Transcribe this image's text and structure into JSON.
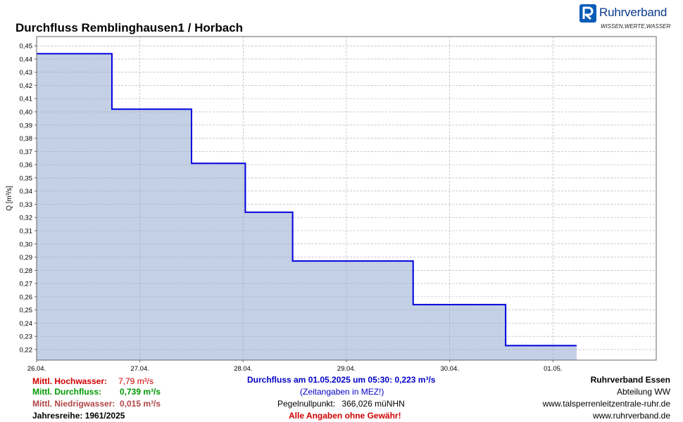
{
  "title": "Durchfluss Remblinghausen1 / Horbach",
  "logo": {
    "name": "Ruhrverband",
    "tagline": "WISSEN,WERTE,WASSER"
  },
  "colors": {
    "line": "#0000dd",
    "fill": "#c4d0e5",
    "plot_bg": "#ffffff",
    "grid": "#a8a8b8"
  },
  "chart_data": {
    "type": "area",
    "ylabel": "Q [m³/s]",
    "xlabel": "",
    "ylim": [
      0.212,
      0.457
    ],
    "xlim": [
      "26.04. 00:00",
      "02.05. 00:00"
    ],
    "yticks": [
      "0,22",
      "0,23",
      "0,24",
      "0,25",
      "0,26",
      "0,27",
      "0,28",
      "0,29",
      "0,30",
      "0,31",
      "0,32",
      "0,33",
      "0,34",
      "0,35",
      "0,36",
      "0,37",
      "0,38",
      "0,39",
      "0,40",
      "0,41",
      "0,42",
      "0,43",
      "0,44",
      "0,45"
    ],
    "xticks": [
      "26.04.",
      "27.04.",
      "28.04.",
      "29.04.",
      "30.04.",
      "01.05."
    ],
    "grid": true,
    "series": [
      {
        "step": "post",
        "x": [
          "26.04. 00:00",
          "26.04. 17:30",
          "27.04. 12:00",
          "28.04. 00:30",
          "28.04. 11:30",
          "29.04. 15:30",
          "30.04. 13:00",
          "01.05. 05:30"
        ],
        "y": [
          0.444,
          0.402,
          0.361,
          0.324,
          0.287,
          0.254,
          0.223,
          0.223
        ]
      }
    ]
  },
  "footer": {
    "hochwasser": {
      "label": "Mittl. Hochwasser:",
      "value": "7,79 m³/s"
    },
    "durchfluss": {
      "label": "Mittl. Durchfluss:",
      "value": "0,739 m³/s"
    },
    "niedrigwasser": {
      "label": "Mittl. Niedrigwasser:",
      "value": "0,015 m³/s"
    },
    "jahresreihe": "Jahresreihe: 1961/2025",
    "current": "Durchfluss am 01.05.2025 um 05:30: 0,223 m³/s",
    "zeitangaben": "(Zeitangaben in MEZ!)",
    "pegel_label": "Pegelnullpunkt:",
    "pegel_value": "366,026 müNHN",
    "disclaimer": "Alle Angaben ohne Gewähr!",
    "org": "Ruhrverband Essen",
    "dept": "Abteilung WW",
    "url1": "www.talsperrenleitzentrale-ruhr.de",
    "url2": "www.ruhrverband.de"
  }
}
